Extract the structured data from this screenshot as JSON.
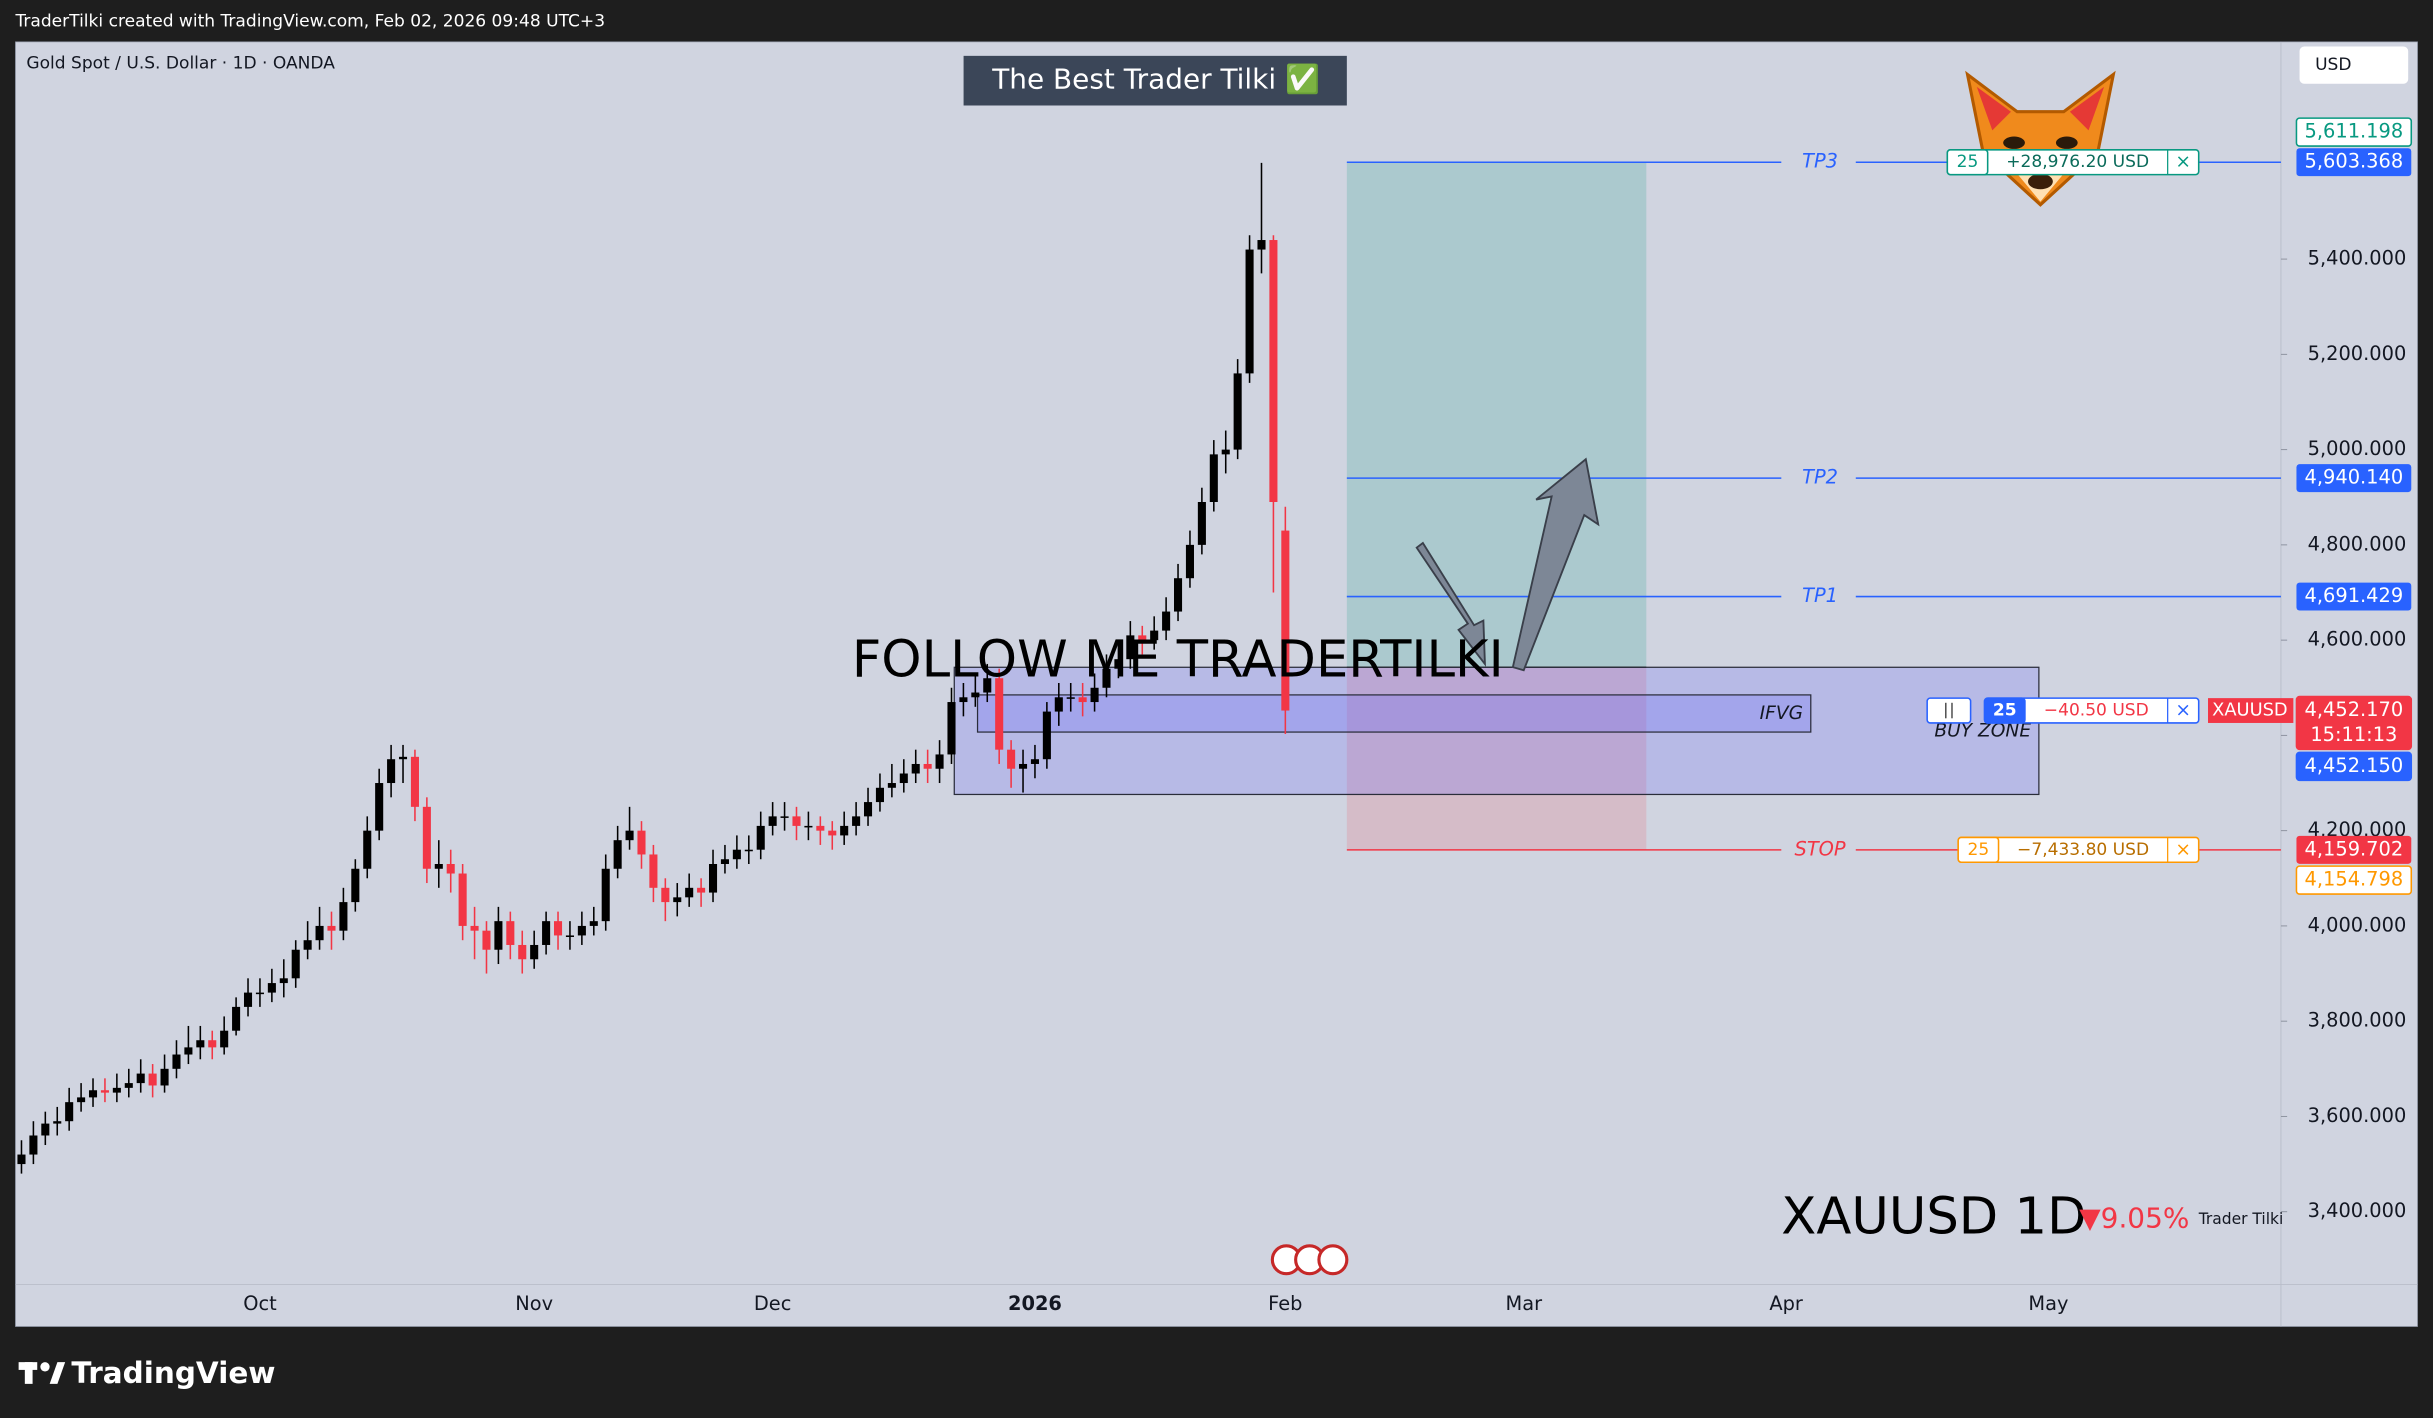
{
  "header": {
    "text": "TraderTilki created with TradingView.com, Feb 02, 2026 09:48 UTC+3"
  },
  "footer": {
    "logo": "TradingView"
  },
  "chart_data": {
    "type": "candlestick",
    "title": "The Best Trader Tilki ✅",
    "symbol_info": "Gold Spot / U.S. Dollar · 1D · OANDA",
    "currency": "USD",
    "annotation": "FOLLOW ME TRADERTILKI",
    "watermark": {
      "symbol": "XAUUSD 1D",
      "change": "▼9.05%",
      "author": "Trader Tilki"
    },
    "categories": [
      null,
      null,
      null,
      null,
      null,
      null,
      null,
      null,
      null,
      null,
      null,
      null,
      null,
      null,
      null,
      null,
      null,
      null,
      null,
      null,
      "Oct",
      null,
      null,
      null,
      null,
      null,
      null,
      null,
      null,
      null,
      null,
      null,
      null,
      null,
      null,
      null,
      null,
      null,
      null,
      null,
      null,
      null,
      null,
      "Nov",
      null,
      null,
      null,
      null,
      null,
      null,
      null,
      null,
      null,
      null,
      null,
      null,
      null,
      null,
      null,
      null,
      null,
      null,
      null,
      "Dec",
      null,
      null,
      null,
      null,
      null,
      null,
      null,
      null,
      null,
      null,
      null,
      null,
      null,
      null,
      null,
      null,
      null,
      null,
      null,
      null,
      null,
      "2026",
      null,
      null,
      null,
      null,
      null,
      null,
      null,
      null,
      null,
      null,
      null,
      null,
      null,
      null,
      null,
      null,
      null,
      null,
      null,
      null,
      "Feb",
      null,
      null,
      null,
      null,
      null,
      null,
      null,
      null,
      null,
      null,
      null,
      null,
      null,
      null,
      null,
      null,
      null,
      null,
      null,
      "Mar",
      null,
      null,
      null,
      null,
      null,
      null,
      null,
      null,
      null,
      null,
      null,
      null,
      null,
      null,
      null,
      null,
      null,
      null,
      null,
      null,
      null,
      "Apr",
      null,
      null,
      null,
      null,
      null,
      null,
      null,
      null,
      null,
      null,
      null,
      null,
      null,
      null,
      null,
      null,
      null,
      null,
      null,
      null,
      null,
      "May",
      null,
      null,
      null,
      null,
      null,
      null,
      null,
      null,
      null,
      null,
      null,
      null,
      null,
      null,
      null,
      null,
      null,
      null,
      null
    ],
    "open": [
      3500,
      3520,
      3560,
      3585,
      3590,
      3630,
      3640,
      3655,
      3650,
      3660,
      3670,
      3690,
      3665,
      3700,
      3730,
      3745,
      3760,
      3745,
      3780,
      3830,
      3860,
      3860,
      3880,
      3890,
      3950,
      3970,
      4000,
      3990,
      4050,
      4120,
      4200,
      4300,
      4350,
      4355,
      4250,
      4120,
      4130,
      4110,
      4000,
      3990,
      3950,
      4010,
      3960,
      3930,
      3960,
      4010,
      3980,
      3980,
      4000,
      4010,
      4120,
      4180,
      4200,
      4150,
      4080,
      4050,
      4060,
      4080,
      4070,
      4130,
      4140,
      4160,
      4160,
      4210,
      4230,
      4230,
      4210,
      4210,
      4200,
      4190,
      4210,
      4230,
      4260,
      4290,
      4300,
      4320,
      4340,
      4330,
      4360,
      4470,
      4480,
      4490,
      4520,
      4370,
      4330,
      4340,
      4350,
      4450,
      4480,
      4480,
      4470,
      4500,
      4540,
      4560,
      4610,
      4600,
      4620,
      4660,
      4730,
      4800,
      4890,
      4990,
      5000,
      5160,
      5420,
      5440,
      4830,
      null,
      null,
      null,
      null,
      null,
      null,
      null,
      null,
      null,
      null,
      null,
      null,
      null,
      null,
      null,
      null,
      null,
      null,
      null,
      null,
      null,
      null,
      null,
      null,
      null,
      null,
      null,
      null,
      null,
      null,
      null,
      null,
      null,
      null,
      null,
      null,
      null,
      null,
      null,
      null,
      null,
      null,
      null,
      null,
      null,
      null,
      null,
      null,
      null,
      null,
      null,
      null,
      null,
      null,
      null,
      null,
      null,
      null,
      null,
      null,
      null,
      null,
      null,
      null,
      null,
      null,
      null,
      null,
      null,
      null,
      null,
      null,
      null,
      null,
      null,
      null,
      null,
      null,
      null,
      null,
      null,
      null,
      null
    ],
    "high": [
      3550,
      3590,
      3610,
      3620,
      3660,
      3670,
      3680,
      3680,
      3690,
      3700,
      3720,
      3710,
      3730,
      3760,
      3790,
      3790,
      3780,
      3810,
      3850,
      3890,
      3890,
      3910,
      3930,
      3970,
      4010,
      4040,
      4030,
      4080,
      4140,
      4230,
      4330,
      4380,
      4380,
      4370,
      4270,
      4180,
      4160,
      4130,
      4040,
      4010,
      4040,
      4030,
      3990,
      3990,
      4030,
      4030,
      4010,
      4030,
      4040,
      4150,
      4210,
      4250,
      4220,
      4170,
      4100,
      4090,
      4110,
      4100,
      4160,
      4170,
      4190,
      4190,
      4240,
      4260,
      4260,
      4250,
      4240,
      4230,
      4220,
      4240,
      4260,
      4290,
      4320,
      4340,
      4350,
      4370,
      4370,
      4390,
      4500,
      4510,
      4530,
      4550,
      4540,
      4390,
      4370,
      4380,
      4470,
      4510,
      4510,
      4510,
      4530,
      4570,
      4600,
      4640,
      4630,
      4650,
      4690,
      4760,
      4830,
      4920,
      5020,
      5040,
      5190,
      5450,
      5602,
      5450,
      4880,
      null,
      null,
      null,
      null,
      null,
      null,
      null,
      null,
      null,
      null,
      null,
      null,
      null,
      null,
      null,
      null,
      null,
      null,
      null,
      null,
      null,
      null,
      null,
      null,
      null,
      null,
      null,
      null,
      null,
      null,
      null,
      null,
      null,
      null,
      null,
      null,
      null,
      null,
      null,
      null,
      null,
      null,
      null,
      null,
      null,
      null,
      null,
      null,
      null,
      null,
      null,
      null,
      null,
      null,
      null,
      null,
      null,
      null,
      null,
      null,
      null,
      null,
      null,
      null,
      null,
      null,
      null,
      null,
      null,
      null,
      null,
      null,
      null,
      null,
      null,
      null,
      null,
      null,
      null,
      null,
      null,
      null,
      null
    ],
    "low": [
      3480,
      3500,
      3540,
      3560,
      3570,
      3610,
      3620,
      3630,
      3630,
      3640,
      3650,
      3640,
      3650,
      3680,
      3710,
      3720,
      3720,
      3730,
      3770,
      3810,
      3830,
      3840,
      3850,
      3870,
      3930,
      3950,
      3950,
      3970,
      4030,
      4100,
      4180,
      4270,
      4300,
      4220,
      4090,
      4080,
      4070,
      3970,
      3930,
      3900,
      3920,
      3930,
      3900,
      3910,
      3940,
      3950,
      3950,
      3960,
      3980,
      3990,
      4100,
      4160,
      4120,
      4050,
      4010,
      4020,
      4040,
      4040,
      4050,
      4110,
      4120,
      4130,
      4140,
      4190,
      4200,
      4180,
      4180,
      4170,
      4160,
      4170,
      4190,
      4210,
      4240,
      4270,
      4280,
      4300,
      4300,
      4300,
      4340,
      4440,
      4460,
      4470,
      4340,
      4290,
      4280,
      4310,
      4330,
      4420,
      4450,
      4440,
      4450,
      4480,
      4520,
      4540,
      4570,
      4580,
      4600,
      4640,
      4710,
      4780,
      4870,
      4950,
      4980,
      5140,
      5370,
      4700,
      4403,
      null,
      null,
      null,
      null,
      null,
      null,
      null,
      null,
      null,
      null,
      null,
      null,
      null,
      null,
      null,
      null,
      null,
      null,
      null,
      null,
      null,
      null,
      null,
      null,
      null,
      null,
      null,
      null,
      null,
      null,
      null,
      null,
      null,
      null,
      null,
      null,
      null,
      null,
      null,
      null,
      null,
      null,
      null,
      null,
      null,
      null,
      null,
      null,
      null,
      null,
      null,
      null,
      null,
      null,
      null,
      null,
      null,
      null,
      null,
      null,
      null,
      null,
      null,
      null,
      null,
      null,
      null,
      null,
      null,
      null,
      null,
      null,
      null,
      null,
      null,
      null,
      null,
      null,
      null,
      null,
      null,
      null,
      null
    ],
    "close": [
      3520,
      3560,
      3585,
      3590,
      3630,
      3640,
      3655,
      3650,
      3660,
      3670,
      3690,
      3665,
      3700,
      3730,
      3745,
      3760,
      3745,
      3780,
      3830,
      3860,
      3860,
      3880,
      3890,
      3950,
      3970,
      4000,
      3990,
      4050,
      4120,
      4200,
      4300,
      4350,
      4355,
      4250,
      4120,
      4130,
      4110,
      4000,
      3990,
      3950,
      4010,
      3960,
      3930,
      3960,
      4010,
      3980,
      3980,
      4000,
      4010,
      4120,
      4180,
      4200,
      4150,
      4080,
      4050,
      4060,
      4080,
      4070,
      4130,
      4140,
      4160,
      4160,
      4210,
      4230,
      4230,
      4210,
      4210,
      4200,
      4190,
      4210,
      4230,
      4260,
      4290,
      4300,
      4320,
      4340,
      4330,
      4360,
      4470,
      4480,
      4490,
      4520,
      4370,
      4330,
      4340,
      4350,
      4450,
      4480,
      4480,
      4470,
      4500,
      4540,
      4560,
      4610,
      4600,
      4620,
      4660,
      4730,
      4800,
      4890,
      4990,
      5000,
      5160,
      5420,
      5440,
      4890,
      4452.17,
      null,
      null,
      null,
      null,
      null,
      null,
      null,
      null,
      null,
      null,
      null,
      null,
      null,
      null,
      null,
      null,
      null,
      null,
      null,
      null,
      null,
      null,
      null,
      null,
      null,
      null,
      null,
      null,
      null,
      null,
      null,
      null,
      null,
      null,
      null,
      null,
      null,
      null,
      null,
      null,
      null,
      null,
      null,
      null,
      null,
      null,
      null,
      null,
      null,
      null,
      null,
      null,
      null,
      null,
      null,
      null,
      null,
      null,
      null,
      null,
      null,
      null,
      null,
      null,
      null,
      null,
      null,
      null,
      null,
      null,
      null,
      null,
      null,
      null,
      null,
      null,
      null,
      null,
      null,
      null,
      null,
      null,
      null
    ],
    "up_color": "#000000",
    "down_color": "#f23645",
    "ylim": [
      3247,
      5856
    ],
    "yticks": [
      {
        "value": 3400,
        "label": "3,400.000"
      },
      {
        "value": 3600,
        "label": "3,600.000"
      },
      {
        "value": 3800,
        "label": "3,800.000"
      },
      {
        "value": 4000,
        "label": "4,000.000"
      },
      {
        "value": 4200,
        "label": "4,200.000"
      },
      {
        "value": 4400,
        "label": "4,400.000"
      },
      {
        "value": 4600,
        "label": "4,600.000"
      },
      {
        "value": 4800,
        "label": "4,800.000"
      },
      {
        "value": 5000,
        "label": "5,000.000"
      },
      {
        "value": 5200,
        "label": "5,200.000"
      },
      {
        "value": 5400,
        "label": "5,400.000"
      }
    ],
    "levels": [
      {
        "name": "TP3",
        "value": 5603.368,
        "label": "5,603.368",
        "color": "#2962ff"
      },
      {
        "name": "TP2",
        "value": 4940.14,
        "label": "4,940.140",
        "color": "#2962ff"
      },
      {
        "name": "TP1",
        "value": 4691.429,
        "label": "4,691.429",
        "color": "#2962ff"
      },
      {
        "name": "STOP",
        "value": 4159.702,
        "label": "4,159.702",
        "color": "#f23645"
      }
    ],
    "price_tags": [
      {
        "value": 5611.198,
        "label": "5,611.198",
        "color": "#089981",
        "style": "outline"
      },
      {
        "value": 4452.17,
        "label": "4,452.170",
        "color": "#f23645",
        "style": "filled",
        "countdown": "15:11:13"
      },
      {
        "value": 4452.15,
        "label": "4,452.150",
        "color": "#2962ff",
        "style": "filled"
      },
      {
        "value": 4154.798,
        "label": "4,154.798",
        "color": "#ff9800",
        "style": "outline"
      }
    ],
    "orders": [
      {
        "qty": 25,
        "pnl": "+28,976.20 USD",
        "color": "#089981",
        "pnl_color": "#0b6b5a"
      },
      {
        "qty": 25,
        "pnl": "−40.50 USD",
        "color": "#2962ff",
        "pnl_color": "#f23645",
        "symbol": "XAUUSD"
      },
      {
        "qty": 25,
        "pnl": "−7,433.80 USD",
        "color": "#ff9800",
        "pnl_color": "#b86e00"
      }
    ],
    "order_close_icon": "×",
    "zones": [
      {
        "name": "BUY ZONE",
        "top": 4543,
        "bottom": 4276
      },
      {
        "name": "IFVG",
        "top": 4485,
        "bottom": 4407
      }
    ],
    "position": {
      "entry": 4543
    }
  }
}
